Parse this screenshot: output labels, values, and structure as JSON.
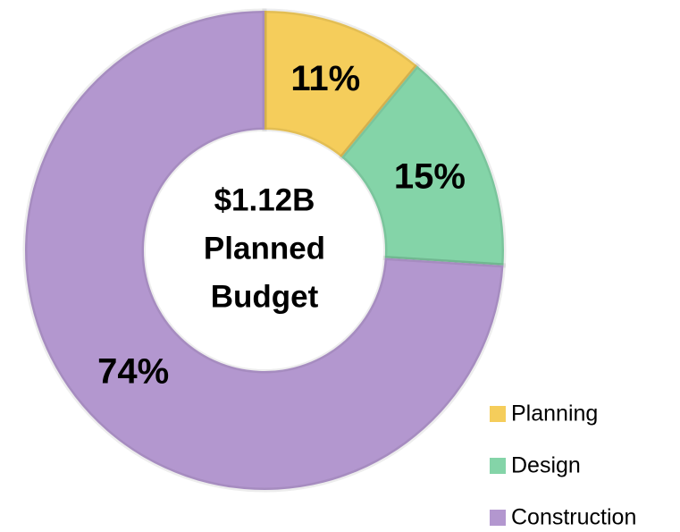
{
  "chart_data": {
    "type": "pie",
    "donut": true,
    "center_text": [
      "$1.12B",
      "Planned",
      "Budget"
    ],
    "categories": [
      "Planning",
      "Design",
      "Construction"
    ],
    "values": [
      11,
      15,
      74
    ],
    "value_labels": [
      "11%",
      "15%",
      "74%"
    ],
    "colors": [
      "#f5cd5b",
      "#84d4a8",
      "#b397cf"
    ],
    "legend": "lower right"
  }
}
